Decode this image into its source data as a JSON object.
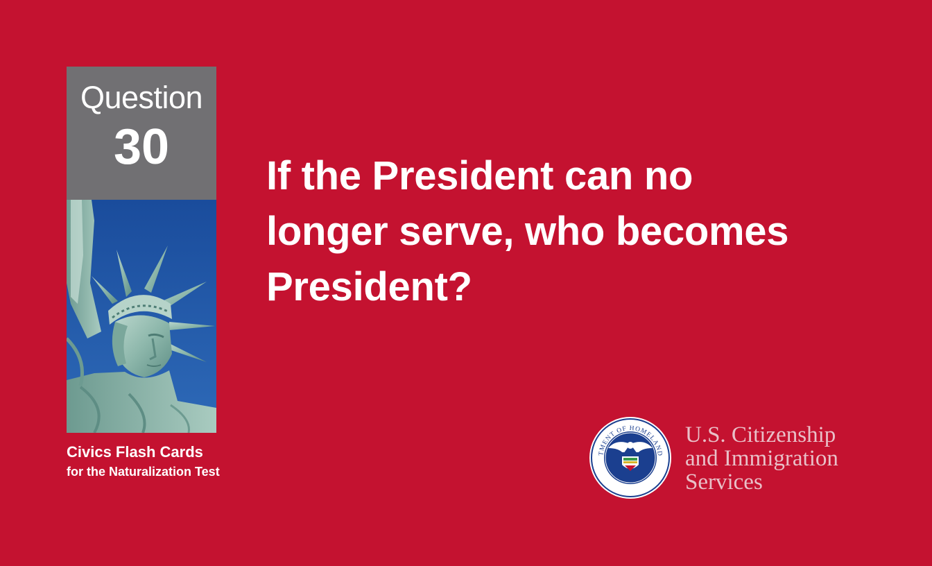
{
  "card": {
    "question_word": "Question",
    "question_number": "30",
    "question_lines": [
      "If the President can no",
      "longer serve, who becomes",
      "President?"
    ],
    "series_title": "Civics Flash Cards",
    "series_subtitle": "for the Naturalization Test"
  },
  "agency": {
    "name_lines": [
      "U.S. Citizenship",
      "and Immigration",
      "Services"
    ],
    "seal_text": "U.S. DEPARTMENT OF HOMELAND SECURITY"
  },
  "colors": {
    "background": "#c41230",
    "question_box": "#717073",
    "sky": "#1f55a6",
    "statue": "#8fb8ad",
    "agency_text": "#e9c0c8"
  },
  "icons": {
    "photo": "statue-of-liberty-photo",
    "seal": "dhs-seal-icon"
  }
}
